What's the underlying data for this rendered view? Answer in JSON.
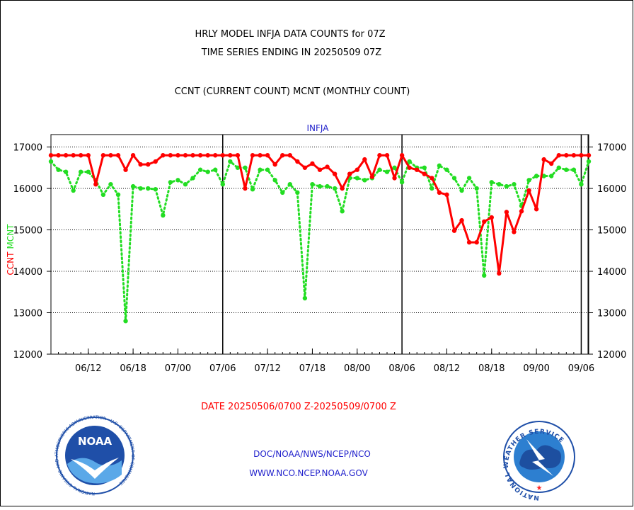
{
  "title_line1": "HRLY MODEL INFJA DATA COUNTS for 07Z",
  "title_line2": "TIME SERIES ENDING IN 20250509 07Z",
  "subtitle": "CCNT (CURRENT COUNT) MCNT (MONTHLY COUNT)",
  "date_range": "DATE 20250506/0700 Z-20250509/0700 Z",
  "footer_line1": "DOC/NOAA/NWS/NCEP/NCO",
  "footer_line2": "WWW.NCO.NCEP.NOAA.GOV",
  "logo_left_text": "NOAA",
  "logo_left_ring": "NATIONAL OCEANIC AND ATMOSPHERIC ADMINISTRATION · U.S. DEPARTMENT OF COMMERCE",
  "logo_right_ring": "NATIONAL WEATHER SERVICE",
  "colors": {
    "ccnt": "#ff0000",
    "mcnt": "#22dd22",
    "title": "#000000",
    "date": "#ff0000",
    "footer": "#2222cc",
    "plot_label": "#2222cc",
    "noaa_blue": "#1f4fa8",
    "nws_blue": "#2d7fd0"
  },
  "chart_data": {
    "type": "line",
    "title": "INFJA",
    "ylabel_ccnt": "CCNT",
    "ylabel_mcnt": "MCNT",
    "ylim": [
      12000,
      17300
    ],
    "yticks": [
      12000,
      13000,
      14000,
      15000,
      16000,
      17000
    ],
    "x_tick_labels": [
      "06/12",
      "06/18",
      "07/00",
      "07/06",
      "07/12",
      "07/18",
      "08/00",
      "08/06",
      "08/12",
      "08/18",
      "09/00",
      "09/06"
    ],
    "x_tick_hours": [
      5,
      11,
      17,
      23,
      29,
      35,
      41,
      47,
      53,
      59,
      65,
      71
    ],
    "x_range_hours": [
      0,
      72
    ],
    "day_boundaries_hours": [
      23,
      47,
      71
    ],
    "grid": true,
    "series": [
      {
        "name": "CCNT",
        "style": "solid",
        "x": [
          0,
          1,
          2,
          3,
          4,
          5,
          6,
          7,
          8,
          9,
          10,
          11,
          12,
          13,
          14,
          15,
          16,
          17,
          18,
          19,
          20,
          21,
          22,
          23,
          24,
          25,
          26,
          27,
          28,
          29,
          30,
          31,
          32,
          33,
          34,
          35,
          36,
          37,
          38,
          39,
          40,
          41,
          42,
          43,
          44,
          45,
          46,
          47,
          48,
          49,
          50,
          51,
          52,
          53,
          54,
          55,
          56,
          57,
          58,
          59,
          60,
          61,
          62,
          63,
          64,
          65,
          66,
          67,
          68,
          69,
          70,
          71,
          72
        ],
        "values": [
          16800,
          16800,
          16800,
          16800,
          16800,
          16800,
          16100,
          16800,
          16800,
          16800,
          16450,
          16800,
          16580,
          16580,
          16650,
          16800,
          16800,
          16800,
          16800,
          16800,
          16800,
          16800,
          16800,
          16800,
          16800,
          16800,
          16000,
          16800,
          16800,
          16800,
          16580,
          16800,
          16800,
          16650,
          16500,
          16600,
          16450,
          16520,
          16350,
          16000,
          16350,
          16450,
          16700,
          16280,
          16800,
          16800,
          16250,
          16800,
          16500,
          16450,
          16350,
          16250,
          15900,
          15850,
          14980,
          15230,
          14700,
          14700,
          15200,
          15300,
          13950,
          15430,
          14950,
          15450,
          15950,
          15500,
          16700,
          16600,
          16800,
          16800,
          16800,
          16800,
          16800
        ]
      },
      {
        "name": "MCNT",
        "style": "dotted",
        "x": [
          0,
          1,
          2,
          3,
          4,
          5,
          6,
          7,
          8,
          9,
          10,
          11,
          12,
          13,
          14,
          15,
          16,
          17,
          18,
          19,
          20,
          21,
          22,
          23,
          24,
          25,
          26,
          27,
          28,
          29,
          30,
          31,
          32,
          33,
          34,
          35,
          36,
          37,
          38,
          39,
          40,
          41,
          42,
          43,
          44,
          45,
          46,
          47,
          48,
          49,
          50,
          51,
          52,
          53,
          54,
          55,
          56,
          57,
          58,
          59,
          60,
          61,
          62,
          63,
          64,
          65,
          66,
          67,
          68,
          69,
          70,
          71,
          72
        ],
        "values": [
          16650,
          16450,
          16400,
          15950,
          16400,
          16400,
          16200,
          15850,
          16100,
          15850,
          12800,
          16050,
          16000,
          16000,
          15980,
          15350,
          16150,
          16200,
          16100,
          16250,
          16450,
          16400,
          16450,
          16100,
          16650,
          16500,
          16500,
          15980,
          16450,
          16450,
          16200,
          15900,
          16100,
          15900,
          13350,
          16100,
          16050,
          16050,
          16000,
          15450,
          16250,
          16250,
          16200,
          16250,
          16450,
          16400,
          16500,
          16150,
          16650,
          16500,
          16500,
          16000,
          16550,
          16450,
          16250,
          15950,
          16250,
          16000,
          13900,
          16150,
          16100,
          16050,
          16100,
          15580,
          16200,
          16300,
          16300,
          16300,
          16500,
          16450,
          16450,
          16100,
          16650
        ]
      }
    ]
  }
}
